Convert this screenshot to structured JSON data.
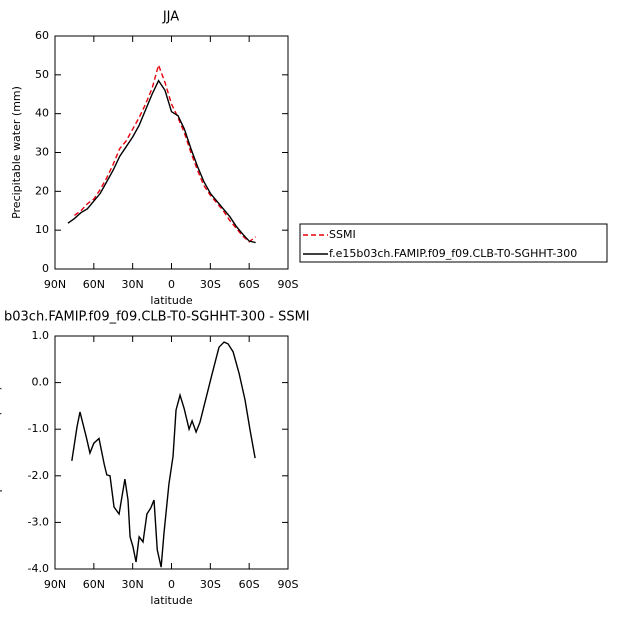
{
  "chart_data": [
    {
      "type": "line",
      "title": "JJA",
      "xlabel": "latitude",
      "ylabel": "Precipitable water (mm)",
      "x": [
        80,
        75,
        70,
        65,
        60,
        55,
        50,
        45,
        40,
        35,
        30,
        25,
        20,
        15,
        10,
        5,
        0,
        -5,
        -10,
        -15,
        -20,
        -25,
        -30,
        -35,
        -40,
        -45,
        -50,
        -55,
        -60,
        -65
      ],
      "series": [
        {
          "name": "SSMI",
          "color": "#e8000b",
          "line_style": "dashed",
          "values": [
            null,
            13.8,
            15,
            16.8,
            18,
            20.5,
            23.5,
            27,
            31,
            33,
            36,
            39,
            42.5,
            46.5,
            52.5,
            48,
            42.5,
            39,
            35,
            30,
            25.5,
            21.5,
            19,
            17,
            15,
            12.5,
            10.5,
            8.5,
            7,
            8.3
          ]
        },
        {
          "name": "f.e15b03ch.FAMIP.f09_f09.CLB-T0-SGHHT-300",
          "color": "#000000",
          "line_style": "solid",
          "values": [
            11.8,
            13,
            14.5,
            15.5,
            17.5,
            19.5,
            22.5,
            25.5,
            29,
            31.5,
            34,
            37,
            41,
            45,
            48.5,
            46,
            40.5,
            39.5,
            36,
            31,
            26.5,
            22.5,
            19.5,
            17.5,
            15.5,
            13.5,
            11,
            9,
            7.2,
            6.8
          ]
        }
      ],
      "xlim": [
        90,
        -90
      ],
      "xticks": [
        {
          "value": 90,
          "label": "90N"
        },
        {
          "value": 60,
          "label": "60N"
        },
        {
          "value": 30,
          "label": "30N"
        },
        0,
        {
          "value": -30,
          "label": "30S"
        },
        {
          "value": -60,
          "label": "60S"
        },
        {
          "value": -90,
          "label": "90S"
        }
      ],
      "ylim": [
        0,
        60
      ],
      "yticks": [
        0,
        10,
        20,
        30,
        40,
        50,
        60
      ],
      "legend": "right"
    },
    {
      "type": "line",
      "title": "b03ch.FAMIP.f09_f09.CLB-T0-SGHHT-300 - SSMI",
      "xlabel": "latitude",
      "ylabel": "Precipitable water (mm)",
      "x": [
        77,
        73,
        70.7,
        66,
        63,
        60,
        56,
        52,
        50,
        47.5,
        44.4,
        40.5,
        36,
        33.6,
        32,
        29.7,
        27.4,
        25,
        22,
        19,
        16,
        13.5,
        11,
        8,
        5.8,
        2,
        -1.2,
        -3.5,
        -6.6,
        -9.7,
        -13.6,
        -15.9,
        -19,
        -22,
        -26.7,
        -31.3,
        -36.7,
        -40.6,
        -43.7,
        -47.6,
        -52.2,
        -56.8,
        -60.7,
        -64.6
      ],
      "series": [
        {
          "name": null,
          "color": "#000000",
          "line_style": "solid",
          "values": [
            -1.68,
            -0.95,
            -0.63,
            -1.15,
            -1.51,
            -1.3,
            -1.2,
            -1.75,
            -1.98,
            -2.0,
            -2.67,
            -2.82,
            -2.07,
            -2.52,
            -3.31,
            -3.53,
            -3.85,
            -3.31,
            -3.42,
            -2.82,
            -2.69,
            -2.52,
            -3.59,
            -3.96,
            -3.23,
            -2.18,
            -1.58,
            -0.59,
            -0.27,
            -0.55,
            -1.0,
            -0.82,
            -1.06,
            -0.85,
            -0.33,
            0.18,
            0.76,
            0.87,
            0.83,
            0.66,
            0.2,
            -0.37,
            -1.02,
            -1.62
          ]
        }
      ],
      "xlim": [
        90,
        -90
      ],
      "xticks": [
        {
          "value": 90,
          "label": "90N"
        },
        {
          "value": 60,
          "label": "60N"
        },
        {
          "value": 30,
          "label": "30N"
        },
        0,
        {
          "value": -30,
          "label": "30S"
        },
        {
          "value": -60,
          "label": "60S"
        },
        {
          "value": -90,
          "label": "90S"
        }
      ],
      "ylim": [
        -4,
        1
      ],
      "yticks": [
        {
          "value": -4,
          "label": "-4.0"
        },
        {
          "value": -3,
          "label": "-3.0"
        },
        {
          "value": -2,
          "label": "-2.0"
        },
        {
          "value": -1,
          "label": "-1.0"
        },
        {
          "value": 0,
          "label": "0.0"
        },
        {
          "value": 1,
          "label": "1.0"
        }
      ]
    }
  ]
}
